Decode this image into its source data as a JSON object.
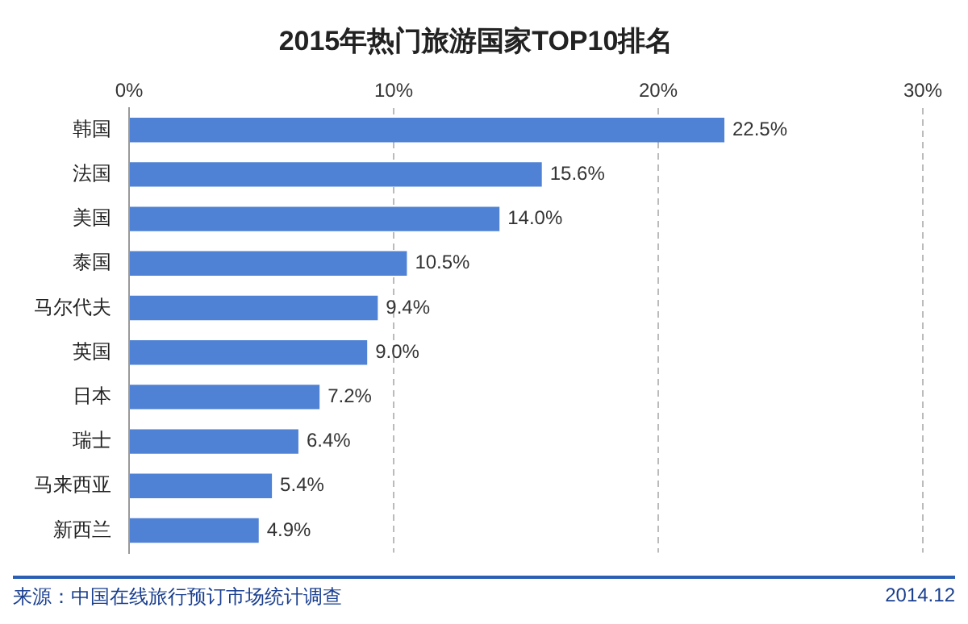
{
  "chart_data": {
    "type": "bar",
    "orientation": "horizontal",
    "title": "2015年热门旅游国家TOP10排名",
    "categories": [
      "韩国",
      "法国",
      "美国",
      "泰国",
      "马尔代夫",
      "英国",
      "日本",
      "瑞士",
      "马来西亚",
      "新西兰"
    ],
    "values": [
      22.5,
      15.6,
      14.0,
      10.5,
      9.4,
      9.0,
      7.2,
      6.4,
      5.4,
      4.9
    ],
    "value_labels": [
      "22.5%",
      "15.6%",
      "14.0%",
      "10.5%",
      "9.4%",
      "9.0%",
      "7.2%",
      "6.4%",
      "5.4%",
      "4.9%"
    ],
    "color": "#4f81d4",
    "xlim": [
      0,
      30
    ],
    "xticks": [
      {
        "value": 0,
        "label": "0%"
      },
      {
        "value": 10,
        "label": "10%"
      },
      {
        "value": 20,
        "label": "20%"
      },
      {
        "value": 30,
        "label": "30%"
      }
    ],
    "grid": "x",
    "annotations": [
      "来源：中国在线旅行预订市场统计调查",
      "2014.12"
    ]
  }
}
